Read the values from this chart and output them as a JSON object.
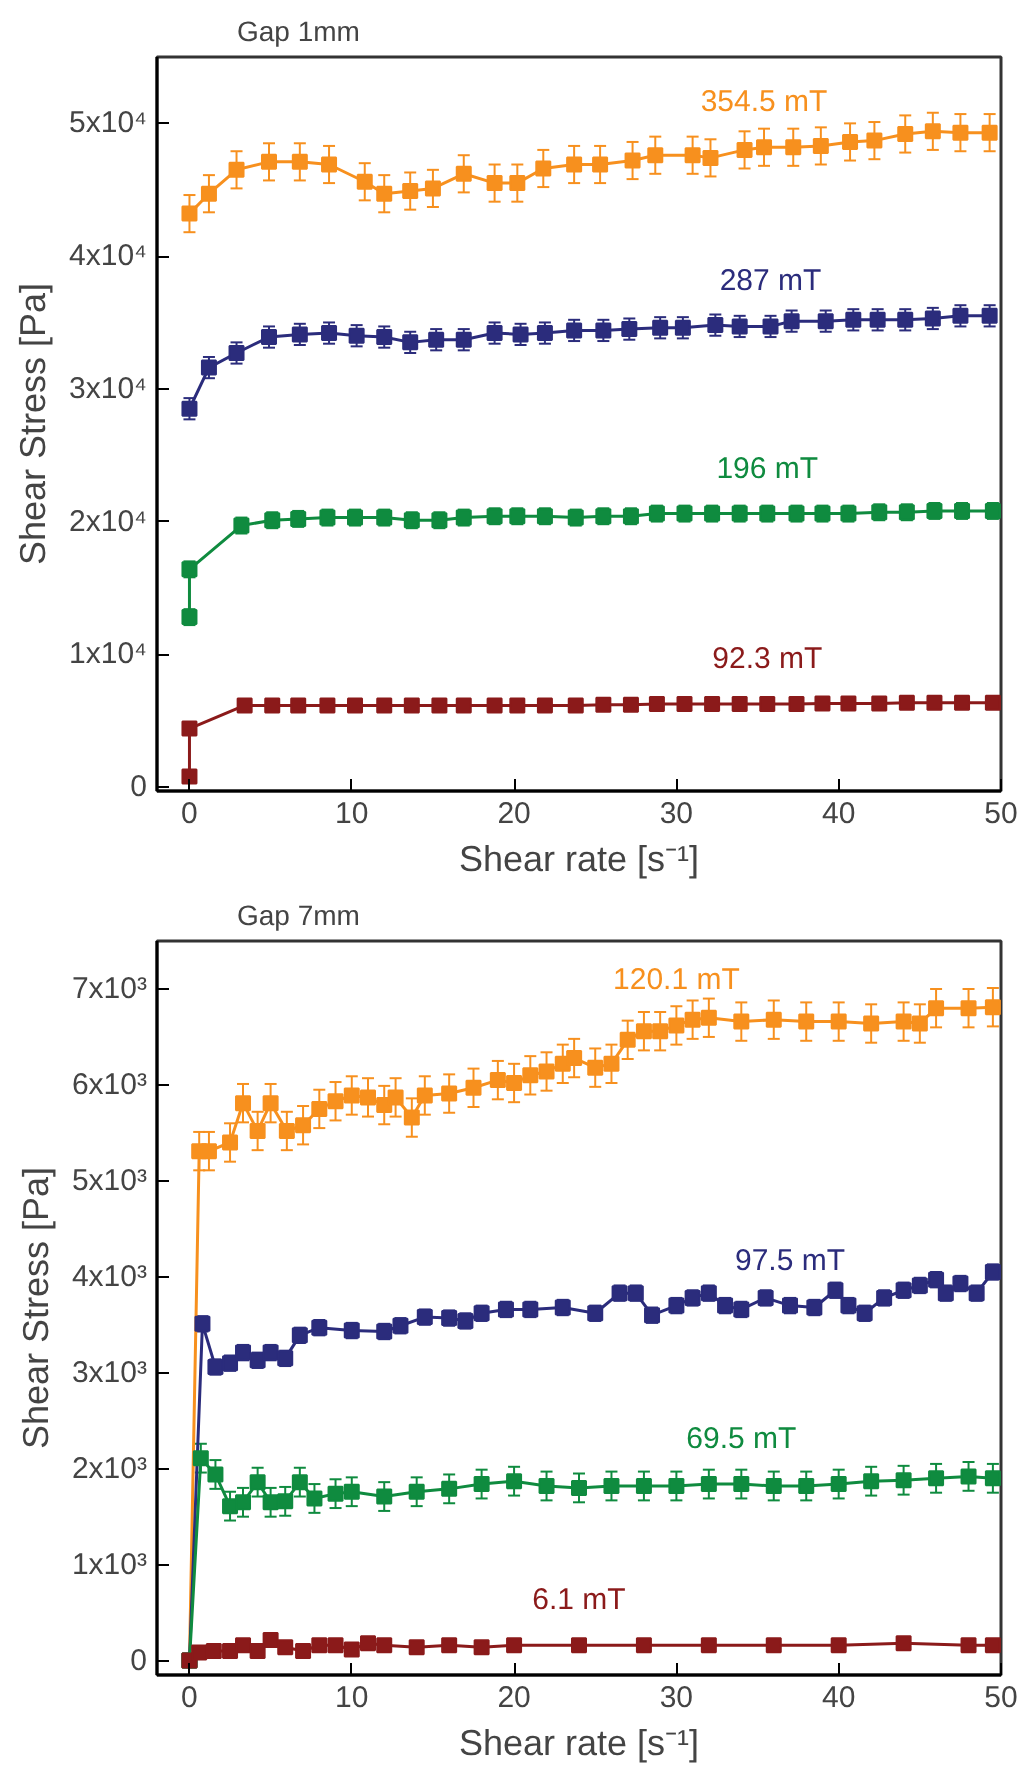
{
  "chart_data": [
    {
      "type": "line",
      "title": "Gap 1mm",
      "xlabel": "Shear rate [s⁻¹]",
      "ylabel": "Shear Stress [Pa]",
      "xlim": [
        -2,
        50
      ],
      "xticks": [
        0,
        10,
        20,
        30,
        40,
        50
      ],
      "ylim": [
        -300,
        55000
      ],
      "yticks": [
        0,
        {
          "value": 10000,
          "label": "1x10⁴"
        },
        {
          "value": 20000,
          "label": "2x10⁴"
        },
        {
          "value": 30000,
          "label": "3x10⁴"
        },
        {
          "value": 40000,
          "label": "4x10⁴"
        },
        {
          "value": 50000,
          "label": "5x10⁴"
        }
      ],
      "grid": false,
      "legend": false,
      "marker": "square",
      "line_style": "solid",
      "series": [
        {
          "name": "354.5 mT",
          "color": "#f7901e",
          "x": [
            0,
            1.2,
            2.9,
            4.9,
            6.8,
            8.6,
            10.8,
            12,
            13.6,
            15,
            16.9,
            18.8,
            20.2,
            21.8,
            23.7,
            25.3,
            27.3,
            28.7,
            31,
            32.1,
            34.2,
            35.4,
            37.2,
            38.9,
            40.7,
            42.2,
            44.1,
            45.8,
            47.5,
            49.3
          ],
          "values": [
            43200,
            44700,
            46500,
            47100,
            47100,
            46900,
            45600,
            44700,
            44900,
            45100,
            46200,
            45500,
            45500,
            46600,
            46900,
            46900,
            47200,
            47600,
            47600,
            47400,
            48000,
            48200,
            48200,
            48300,
            48600,
            48700,
            49200,
            49400,
            49300,
            49300
          ],
          "errors": [
            1400,
            1400,
            1400,
            1400,
            1400,
            1400,
            1400,
            1400,
            1400,
            1400,
            1400,
            1400,
            1400,
            1400,
            1400,
            1400,
            1400,
            1400,
            1400,
            1400,
            1400,
            1400,
            1400,
            1400,
            1400,
            1400,
            1400,
            1400,
            1400,
            1400
          ]
        },
        {
          "name": "287 mT",
          "color": "#2b2c7c",
          "x": [
            0,
            1.2,
            2.9,
            4.9,
            6.8,
            8.6,
            10.3,
            12,
            13.6,
            15.2,
            16.9,
            18.8,
            20.4,
            21.9,
            23.7,
            25.5,
            27.1,
            29,
            30.4,
            32.4,
            33.9,
            35.8,
            37.1,
            39.2,
            40.9,
            42.4,
            44.1,
            45.8,
            47.5,
            49.3
          ],
          "values": [
            28500,
            31600,
            32700,
            33900,
            34100,
            34200,
            34000,
            33900,
            33500,
            33700,
            33700,
            34200,
            34100,
            34200,
            34400,
            34400,
            34500,
            34600,
            34600,
            34800,
            34700,
            34700,
            35100,
            35100,
            35200,
            35200,
            35200,
            35300,
            35500,
            35500
          ],
          "errors": [
            800,
            800,
            800,
            800,
            800,
            800,
            800,
            800,
            800,
            800,
            800,
            800,
            800,
            800,
            800,
            800,
            800,
            800,
            800,
            800,
            800,
            800,
            800,
            800,
            800,
            800,
            800,
            800,
            800,
            800
          ]
        },
        {
          "name": "196 mT",
          "color": "#0f8b3f",
          "x": [
            0,
            0,
            3.2,
            5.1,
            6.7,
            8.5,
            10.2,
            12,
            13.7,
            15.4,
            16.9,
            18.8,
            20.2,
            21.9,
            23.8,
            25.5,
            27.2,
            28.8,
            30.5,
            32.2,
            33.9,
            35.6,
            37.4,
            39,
            40.6,
            42.5,
            44.2,
            45.9,
            47.6,
            49.5
          ],
          "values": [
            12800,
            16400,
            19700,
            20100,
            20200,
            20300,
            20300,
            20300,
            20100,
            20100,
            20300,
            20400,
            20400,
            20400,
            20300,
            20400,
            20400,
            20600,
            20600,
            20600,
            20600,
            20600,
            20600,
            20600,
            20600,
            20700,
            20700,
            20800,
            20800,
            20800
          ],
          "errors": [
            600,
            600,
            600,
            600,
            600,
            600,
            600,
            600,
            600,
            600,
            600,
            600,
            600,
            600,
            600,
            600,
            600,
            600,
            600,
            600,
            600,
            600,
            600,
            600,
            600,
            600,
            600,
            600,
            600,
            600
          ]
        },
        {
          "name": "92.3 mT",
          "color": "#8b1a1a",
          "x": [
            0,
            0,
            3.4,
            5.1,
            6.7,
            8.5,
            10.2,
            12,
            13.7,
            15.4,
            16.9,
            18.8,
            20.2,
            21.9,
            23.8,
            25.5,
            27.2,
            28.8,
            30.5,
            32.2,
            33.9,
            35.6,
            37.4,
            39,
            40.6,
            42.5,
            44.2,
            45.9,
            47.6,
            49.5
          ],
          "values": [
            800,
            4400,
            6150,
            6150,
            6150,
            6150,
            6150,
            6150,
            6150,
            6150,
            6150,
            6150,
            6150,
            6150,
            6150,
            6200,
            6200,
            6250,
            6250,
            6250,
            6250,
            6250,
            6250,
            6300,
            6300,
            6300,
            6350,
            6350,
            6350,
            6350
          ],
          "errors": [
            300,
            300,
            300,
            300,
            300,
            300,
            300,
            300,
            300,
            300,
            300,
            300,
            300,
            300,
            300,
            300,
            300,
            300,
            300,
            300,
            300,
            300,
            300,
            300,
            300,
            300,
            300,
            300,
            300,
            300
          ]
        }
      ]
    },
    {
      "type": "line",
      "title": "Gap 7mm",
      "xlabel": "Shear rate [s⁻¹]",
      "ylabel": "Shear Stress [Pa]",
      "xlim": [
        -2,
        50
      ],
      "xticks": [
        0,
        10,
        20,
        30,
        40,
        50
      ],
      "ylim": [
        -150,
        7500
      ],
      "yticks": [
        0,
        {
          "value": 1000,
          "label": "1x10³"
        },
        {
          "value": 2000,
          "label": "2x10³"
        },
        {
          "value": 3000,
          "label": "3x10³"
        },
        {
          "value": 4000,
          "label": "4x10³"
        },
        {
          "value": 5000,
          "label": "5x10³"
        },
        {
          "value": 6000,
          "label": "6x10³"
        },
        {
          "value": 7000,
          "label": "7x10³"
        }
      ],
      "grid": false,
      "legend": false,
      "marker": "square",
      "line_style": "solid",
      "series": [
        {
          "name": "120.1 mT",
          "color": "#f7901e",
          "x": [
            0,
            0.6,
            1.2,
            2.5,
            3.3,
            4.2,
            5,
            6,
            7,
            8,
            9,
            10,
            11,
            12,
            12.7,
            13.7,
            14.5,
            16,
            17.5,
            19,
            20,
            21,
            22,
            23,
            23.7,
            25,
            26,
            27,
            28,
            29,
            30,
            31,
            32,
            34,
            36,
            38,
            40,
            42,
            44,
            45,
            46,
            48,
            49.5
          ],
          "values": [
            0,
            5310,
            5310,
            5400,
            5810,
            5520,
            5810,
            5520,
            5580,
            5750,
            5830,
            5890,
            5870,
            5790,
            5870,
            5660,
            5890,
            5910,
            5970,
            6050,
            6020,
            6100,
            6140,
            6220,
            6280,
            6180,
            6220,
            6470,
            6560,
            6560,
            6620,
            6680,
            6700,
            6660,
            6680,
            6660,
            6660,
            6640,
            6660,
            6640,
            6800,
            6800,
            6810
          ],
          "errors": [
            null,
            200,
            200,
            200,
            200,
            200,
            200,
            200,
            200,
            200,
            200,
            200,
            200,
            200,
            200,
            200,
            200,
            200,
            200,
            200,
            200,
            200,
            200,
            200,
            200,
            200,
            200,
            200,
            200,
            200,
            200,
            200,
            200,
            200,
            200,
            200,
            200,
            200,
            200,
            200,
            200,
            200,
            200
          ]
        },
        {
          "name": "97.5 mT",
          "color": "#2b2c7c",
          "x": [
            0,
            0.8,
            1.6,
            2.5,
            3.3,
            4.2,
            5,
            5.9,
            6.8,
            8,
            10,
            12,
            13,
            14.5,
            16,
            17,
            18,
            19.5,
            21,
            23,
            25,
            26.5,
            27.5,
            28.5,
            30,
            31,
            32,
            33,
            34,
            35.5,
            37,
            38.5,
            39.8,
            40.6,
            41.6,
            42.8,
            44,
            45,
            46,
            46.6,
            47.5,
            48.5,
            49.5
          ],
          "values": [
            0,
            3510,
            3060,
            3100,
            3210,
            3130,
            3210,
            3150,
            3390,
            3470,
            3440,
            3430,
            3490,
            3580,
            3570,
            3540,
            3620,
            3660,
            3660,
            3680,
            3620,
            3830,
            3830,
            3600,
            3700,
            3780,
            3830,
            3700,
            3660,
            3780,
            3700,
            3680,
            3860,
            3700,
            3620,
            3780,
            3860,
            3910,
            3970,
            3830,
            3930,
            3830,
            4050
          ],
          "errors": [
            null,
            80,
            80,
            80,
            80,
            80,
            80,
            80,
            80,
            80,
            80,
            80,
            80,
            80,
            80,
            80,
            80,
            80,
            80,
            80,
            80,
            80,
            80,
            80,
            80,
            80,
            80,
            80,
            80,
            80,
            80,
            80,
            80,
            80,
            80,
            80,
            80,
            80,
            80,
            80,
            80,
            80,
            80
          ]
        },
        {
          "name": "69.5 mT",
          "color": "#0f8b3f",
          "x": [
            0,
            0.7,
            1.6,
            2.5,
            3.3,
            4.2,
            5,
            5.9,
            6.8,
            7.7,
            9,
            10,
            12,
            14,
            16,
            18,
            20,
            22,
            24,
            26,
            28,
            30,
            32,
            34,
            36,
            38,
            40,
            42,
            44,
            46,
            48,
            49.5
          ],
          "values": [
            0,
            2110,
            1940,
            1610,
            1650,
            1860,
            1650,
            1660,
            1860,
            1690,
            1740,
            1760,
            1710,
            1760,
            1790,
            1840,
            1870,
            1820,
            1800,
            1820,
            1820,
            1820,
            1840,
            1840,
            1820,
            1820,
            1840,
            1870,
            1880,
            1900,
            1920,
            1900
          ],
          "errors": [
            null,
            150,
            150,
            150,
            150,
            150,
            150,
            150,
            150,
            150,
            150,
            150,
            150,
            150,
            150,
            150,
            150,
            150,
            150,
            150,
            150,
            150,
            150,
            150,
            150,
            150,
            150,
            150,
            150,
            150,
            150,
            150
          ]
        },
        {
          "name": "6.1 mT",
          "color": "#8b1a1a",
          "x": [
            0,
            0.6,
            1.5,
            2.5,
            3.3,
            4.2,
            5,
            5.9,
            7,
            8,
            9,
            10,
            11,
            12,
            14,
            16,
            18,
            20,
            24,
            28,
            32,
            36,
            40,
            44,
            48,
            49.5
          ],
          "values": [
            0,
            85,
            100,
            100,
            160,
            100,
            215,
            140,
            100,
            160,
            160,
            115,
            180,
            160,
            140,
            160,
            140,
            160,
            160,
            160,
            160,
            160,
            160,
            180,
            160,
            160
          ],
          "errors": [
            null,
            50,
            50,
            50,
            50,
            50,
            50,
            50,
            50,
            50,
            50,
            50,
            50,
            50,
            50,
            50,
            50,
            50,
            50,
            50,
            50,
            50,
            50,
            50,
            50,
            50
          ]
        }
      ]
    }
  ]
}
